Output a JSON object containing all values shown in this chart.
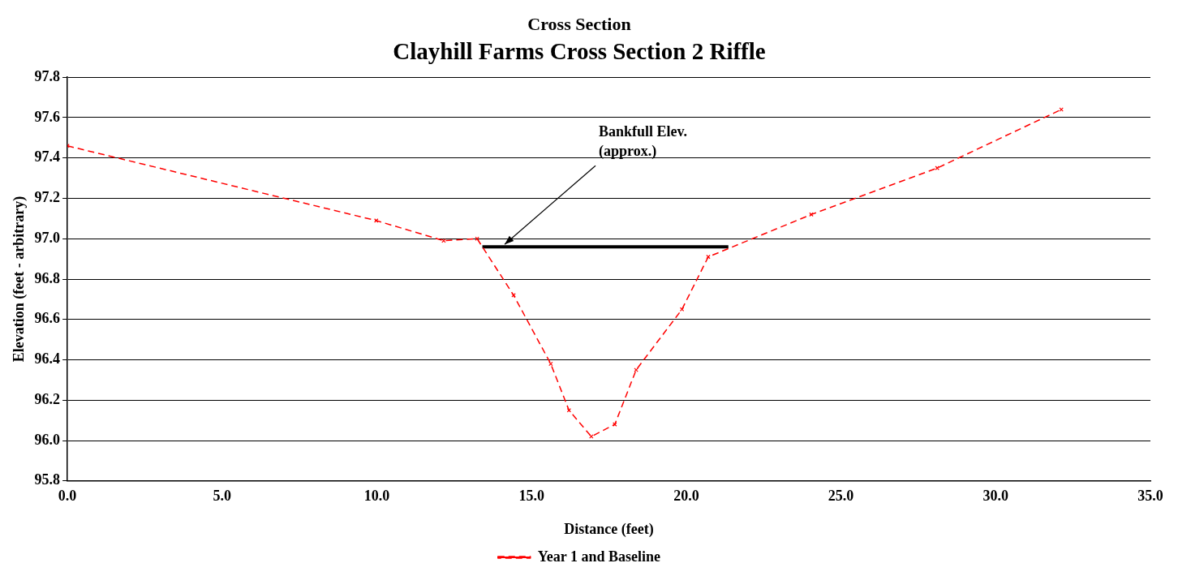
{
  "chart_data": {
    "type": "line",
    "title": "Cross Section",
    "subtitle": "Clayhill Farms Cross Section 2 Riffle",
    "xlabel": "Distance (feet)",
    "ylabel": "Elevation (feet - arbitrary)",
    "series": [
      {
        "name": "Year 1 and Baseline",
        "color": "#ff0000",
        "marker": "cross",
        "line_style": "dashed",
        "x": [
          0,
          9.98,
          12.16,
          13.24,
          14.42,
          15.62,
          16.21,
          16.93,
          17.69,
          18.38,
          19.86,
          20.71,
          24.04,
          28.11,
          32.12
        ],
        "values": [
          97.46,
          97.09,
          96.99,
          97.0,
          96.72,
          96.38,
          96.15,
          96.02,
          96.08,
          96.35,
          96.65,
          96.91,
          97.12,
          97.35,
          97.64
        ]
      },
      {
        "color": "#000000",
        "marker": "none",
        "line_style": "solid",
        "x": [
          13.41,
          21.36
        ],
        "values": [
          96.96,
          96.96
        ]
      }
    ],
    "annotations": [
      {
        "text": "Bankfull Elev.\n(approx.)",
        "x": 14.13,
        "y": 96.96
      }
    ],
    "xlim": [
      0,
      35
    ],
    "xticks": [
      {
        "value": 0,
        "label": "0.0"
      },
      {
        "value": 5,
        "label": "5.0"
      },
      {
        "value": 10,
        "label": "10.0"
      },
      {
        "value": 15,
        "label": "15.0"
      },
      {
        "value": 20,
        "label": "20.0"
      },
      {
        "value": 25,
        "label": "25.0"
      },
      {
        "value": 30,
        "label": "30.0"
      },
      {
        "value": 35,
        "label": "35.0"
      }
    ],
    "ylim": [
      95.8,
      97.8
    ],
    "yticks": [
      {
        "value": 95.8,
        "label": "95.8"
      },
      {
        "value": 96,
        "label": "96.0"
      },
      {
        "value": 96.2,
        "label": "96.2"
      },
      {
        "value": 96.4,
        "label": "96.4"
      },
      {
        "value": 96.6,
        "label": "96.6"
      },
      {
        "value": 96.8,
        "label": "96.8"
      },
      {
        "value": 97,
        "label": "97.0"
      },
      {
        "value": 97.2,
        "label": "97.2"
      },
      {
        "value": 97.4,
        "label": "97.4"
      },
      {
        "value": 97.6,
        "label": "97.6"
      },
      {
        "value": 97.8,
        "label": "97.8"
      }
    ],
    "grid": "y",
    "legend": "bottom"
  }
}
